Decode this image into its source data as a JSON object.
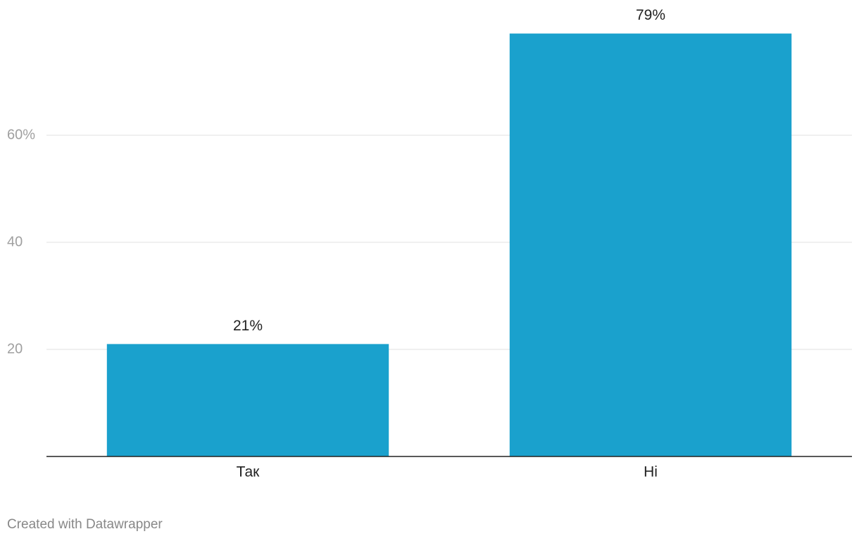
{
  "chart_data": {
    "type": "bar",
    "categories": [
      "Так",
      "Ні"
    ],
    "values": [
      21,
      79
    ],
    "value_labels": [
      "21%",
      "79%"
    ],
    "color": "#1aa1cd",
    "ylim": [
      0,
      85
    ],
    "yticks": [
      20,
      40,
      {
        "value": 60,
        "label": "60%"
      }
    ],
    "grid": true,
    "credit": "Created with Datawrapper"
  }
}
